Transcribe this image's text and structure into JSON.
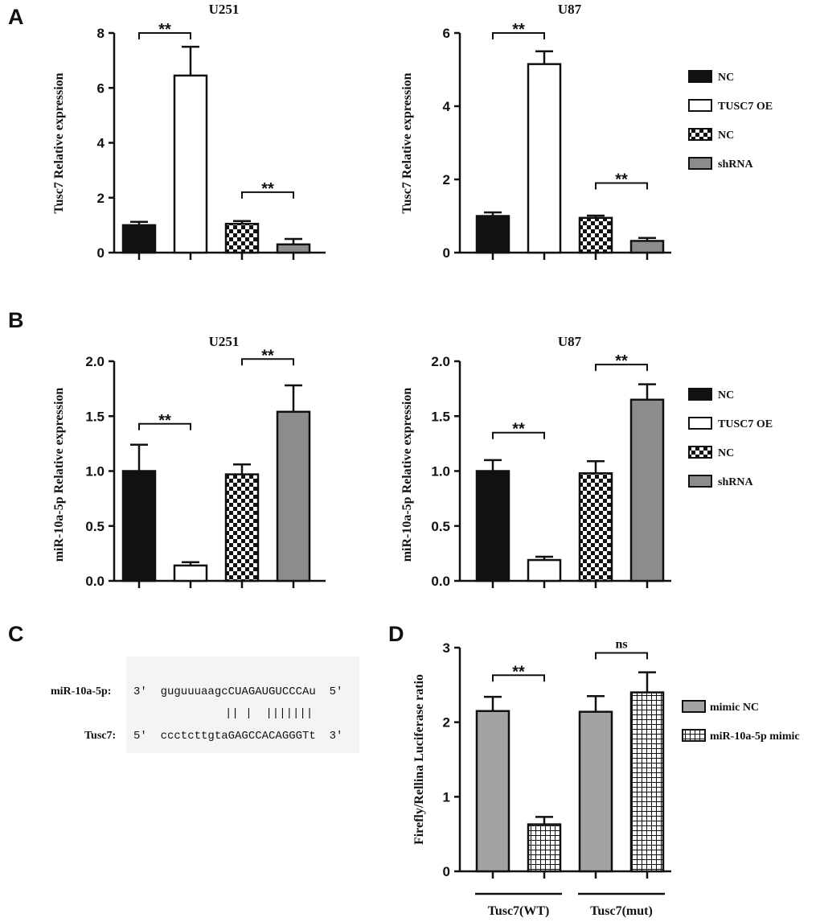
{
  "panels": {
    "A": "A",
    "B": "B",
    "C": "C",
    "D": "D"
  },
  "colors": {
    "black": "#111111",
    "white": "#ffffff",
    "gray": "#8c8c8c",
    "lightgray": "#a3a3a6"
  },
  "chart_data": [
    {
      "id": "A-U251",
      "type": "bar",
      "title": "U251",
      "ylabel": "Tusc7 Relative expression",
      "ylim": [
        0,
        8
      ],
      "yticks": [
        0,
        2,
        4,
        6,
        8
      ],
      "decimals": 0,
      "categories": [
        "NC",
        "TUSC7 OE",
        "NC",
        "shRNA"
      ],
      "values": [
        1.0,
        6.45,
        1.05,
        0.3
      ],
      "errors": [
        0.12,
        1.05,
        0.1,
        0.2
      ],
      "fills": [
        "black",
        "white",
        "checker",
        "gray"
      ],
      "significance": [
        {
          "from": 0,
          "to": 1,
          "label": "**",
          "y": 8.0
        },
        {
          "from": 2,
          "to": 3,
          "label": "**",
          "y": 2.2
        }
      ]
    },
    {
      "id": "A-U87",
      "type": "bar",
      "title": "U87",
      "ylabel": "Tusc7 Relative expression",
      "ylim": [
        0,
        6
      ],
      "yticks": [
        0,
        2,
        4,
        6
      ],
      "decimals": 0,
      "categories": [
        "NC",
        "TUSC7 OE",
        "NC",
        "shRNA"
      ],
      "values": [
        1.0,
        5.15,
        0.95,
        0.32
      ],
      "errors": [
        0.1,
        0.35,
        0.06,
        0.08
      ],
      "fills": [
        "black",
        "white",
        "checker",
        "gray"
      ],
      "significance": [
        {
          "from": 0,
          "to": 1,
          "label": "**",
          "y": 6.0
        },
        {
          "from": 2,
          "to": 3,
          "label": "**",
          "y": 1.9
        }
      ]
    },
    {
      "id": "B-U251",
      "type": "bar",
      "title": "U251",
      "ylabel": "miR-10a-5p Relative expression",
      "ylim": [
        0,
        2.0
      ],
      "yticks": [
        0,
        0.5,
        1.0,
        1.5,
        2.0
      ],
      "decimals": 1,
      "categories": [
        "NC",
        "TUSC7 OE",
        "NC",
        "shRNA"
      ],
      "values": [
        1.0,
        0.14,
        0.97,
        1.54
      ],
      "errors": [
        0.24,
        0.03,
        0.09,
        0.24
      ],
      "fills": [
        "black",
        "white",
        "checker",
        "gray"
      ],
      "significance": [
        {
          "from": 0,
          "to": 1,
          "label": "**",
          "y": 1.43
        },
        {
          "from": 2,
          "to": 3,
          "label": "**",
          "y": 2.02
        }
      ]
    },
    {
      "id": "B-U87",
      "type": "bar",
      "title": "U87",
      "ylabel": "miR-10a-5p Relative expression",
      "ylim": [
        0,
        2.0
      ],
      "yticks": [
        0,
        0.5,
        1.0,
        1.5,
        2.0
      ],
      "decimals": 1,
      "categories": [
        "NC",
        "TUSC7 OE",
        "NC",
        "shRNA"
      ],
      "values": [
        1.0,
        0.19,
        0.98,
        1.65
      ],
      "errors": [
        0.1,
        0.03,
        0.11,
        0.14
      ],
      "fills": [
        "black",
        "white",
        "checker",
        "gray"
      ],
      "significance": [
        {
          "from": 0,
          "to": 1,
          "label": "**",
          "y": 1.35
        },
        {
          "from": 2,
          "to": 3,
          "label": "**",
          "y": 1.97
        }
      ]
    },
    {
      "id": "D",
      "type": "bar",
      "title": "",
      "ylabel": "Firefly/Rellina Luciferase ratio",
      "ylim": [
        0,
        3
      ],
      "yticks": [
        0,
        1,
        2,
        3
      ],
      "decimals": 0,
      "groups": [
        "Tusc7(WT)",
        "Tusc7(mut)"
      ],
      "series": [
        {
          "name": "mimic NC",
          "fill": "lightgray"
        },
        {
          "name": "miR-10a-5p mimic",
          "fill": "grid"
        }
      ],
      "values": [
        2.15,
        0.63,
        2.14,
        2.4
      ],
      "errors": [
        0.19,
        0.1,
        0.21,
        0.27
      ],
      "fills": [
        "lightgray",
        "grid",
        "lightgray",
        "grid"
      ],
      "significance": [
        {
          "from": 0,
          "to": 1,
          "label": "**",
          "y": 2.63
        },
        {
          "from": 2,
          "to": 3,
          "label": "ns",
          "y": 2.93
        }
      ]
    }
  ],
  "legends": {
    "A": [
      {
        "label": "NC",
        "fill": "black"
      },
      {
        "label": "TUSC7 OE",
        "fill": "white"
      },
      {
        "label": "NC",
        "fill": "checker"
      },
      {
        "label": "shRNA",
        "fill": "gray"
      }
    ],
    "B": [
      {
        "label": "NC",
        "fill": "black"
      },
      {
        "label": "TUSC7 OE",
        "fill": "white"
      },
      {
        "label": "NC",
        "fill": "checker"
      },
      {
        "label": "shRNA",
        "fill": "gray"
      }
    ],
    "D": [
      {
        "label": "mimic NC",
        "fill": "lightgray"
      },
      {
        "label": "miR-10a-5p mimic",
        "fill": "grid"
      }
    ]
  },
  "panelC": {
    "mirna_label": "miR-10a-5p:",
    "mirna_seq": "3'  guguuuaagcCUAGAUGUCCCAu  5'",
    "pairing": "|| |  |||||||",
    "tusc_label": "Tusc7:",
    "tusc_seq": "5'  ccctcttgtaGAGCCACAGGGTt  3'"
  }
}
